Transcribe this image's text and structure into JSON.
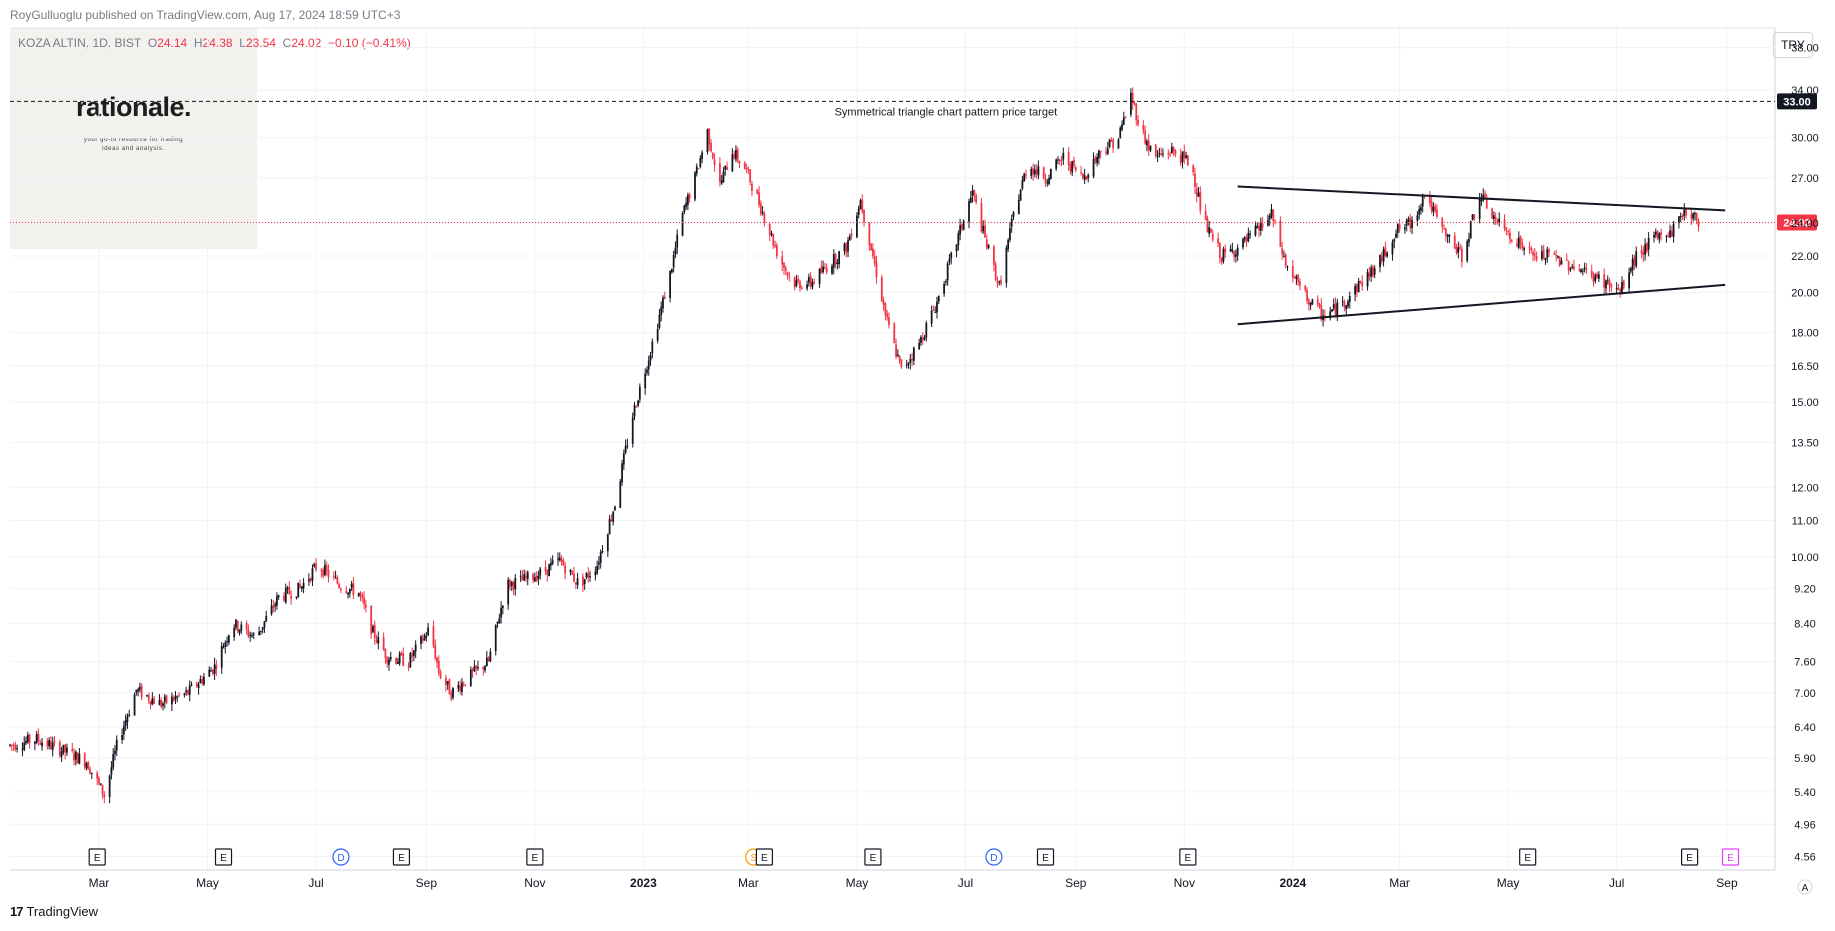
{
  "header": {
    "published": "RoyGulluoglu published on TradingView.com, Aug 17, 2024 18:59 UTC+3"
  },
  "legend": {
    "symbol": "KOZA ALTIN, 1D, BIST",
    "open_label": "O",
    "open": "24.14",
    "high_label": "H",
    "high": "24.38",
    "low_label": "L",
    "low": "23.54",
    "close_label": "C",
    "close": "24.02",
    "change": "−0.10 (−0.41%)"
  },
  "watermark": {
    "brand": "rationale.",
    "tagline_1": "your go-to resource for trading",
    "tagline_2": "ideas and analysis."
  },
  "currency_button": "TRY",
  "footer": {
    "brand": "TradingView",
    "mark": "17"
  },
  "colors": {
    "up": "#131722",
    "down": "#f23645",
    "grid": "#f0f3fa",
    "price_line": "#f23645",
    "target_line": "#131722",
    "events": "#131722",
    "dividend": "#2962ff",
    "split": "#ff9800",
    "upcoming_earnings": "#e040fb"
  },
  "chart_data": {
    "type": "candlestick",
    "title": "KOZA ALTIN, 1D, BIST",
    "scale": "log",
    "ylim": [
      4.4,
      40
    ],
    "y_ticks": [
      "38.00",
      "34.00",
      "30.00",
      "27.00",
      "24.00",
      "22.00",
      "20.00",
      "18.00",
      "16.50",
      "15.00",
      "13.50",
      "12.00",
      "11.00",
      "10.00",
      "9.20",
      "8.40",
      "7.60",
      "7.00",
      "6.40",
      "5.90",
      "5.40",
      "4.96",
      "4.56"
    ],
    "x_ticks": [
      "Mar",
      "May",
      "Jul",
      "Sep",
      "Nov",
      "2023",
      "Mar",
      "May",
      "Jul",
      "Sep",
      "Nov",
      "2024",
      "Mar",
      "May",
      "Jul",
      "Sep"
    ],
    "x_tick_bold": [
      false,
      false,
      false,
      false,
      false,
      true,
      false,
      false,
      false,
      false,
      false,
      true,
      false,
      false,
      false,
      false
    ],
    "grid": true,
    "last_price": 24.02,
    "last_price_label": "24.02",
    "target_price": 33.0,
    "target_label": "33.00",
    "annotation": "Symmetrical triangle chart pattern price target",
    "trendlines": [
      {
        "name": "upper",
        "from": [
          "2023-12-01",
          26.4
        ],
        "to": [
          "2024-08-31",
          24.8
        ]
      },
      {
        "name": "lower",
        "from": [
          "2023-12-01",
          18.4
        ],
        "to": [
          "2024-08-31",
          20.4
        ]
      }
    ],
    "path_points": [
      [
        "2022-01-10",
        6.1
      ],
      [
        "2022-01-25",
        6.2
      ],
      [
        "2022-02-10",
        6.0
      ],
      [
        "2022-02-22",
        5.85
      ],
      [
        "2022-03-04",
        5.35
      ],
      [
        "2022-03-12",
        6.2
      ],
      [
        "2022-03-22",
        7.05
      ],
      [
        "2022-04-05",
        6.8
      ],
      [
        "2022-04-20",
        7.0
      ],
      [
        "2022-05-05",
        7.5
      ],
      [
        "2022-05-15",
        8.4
      ],
      [
        "2022-05-28",
        8.1
      ],
      [
        "2022-06-10",
        9.0
      ],
      [
        "2022-06-22",
        9.2
      ],
      [
        "2022-07-02",
        9.8
      ],
      [
        "2022-07-14",
        9.3
      ],
      [
        "2022-07-25",
        9.1
      ],
      [
        "2022-08-02",
        8.2
      ],
      [
        "2022-08-10",
        7.7
      ],
      [
        "2022-08-22",
        7.6
      ],
      [
        "2022-09-03",
        8.3
      ],
      [
        "2022-09-08",
        7.4
      ],
      [
        "2022-09-15",
        7.0
      ],
      [
        "2022-09-25",
        7.3
      ],
      [
        "2022-10-06",
        7.6
      ],
      [
        "2022-10-16",
        9.3
      ],
      [
        "2022-10-25",
        9.4
      ],
      [
        "2022-11-05",
        9.6
      ],
      [
        "2022-11-15",
        9.9
      ],
      [
        "2022-11-26",
        9.3
      ],
      [
        "2022-12-06",
        9.8
      ],
      [
        "2022-12-16",
        11.5
      ],
      [
        "2022-12-26",
        14.5
      ],
      [
        "2023-01-06",
        17.5
      ],
      [
        "2023-01-16",
        21.0
      ],
      [
        "2023-01-23",
        24.5
      ],
      [
        "2023-01-30",
        27.0
      ],
      [
        "2023-02-06",
        30.5
      ],
      [
        "2023-02-13",
        26.5
      ],
      [
        "2023-02-20",
        29.0
      ],
      [
        "2023-02-28",
        27.5
      ],
      [
        "2023-03-08",
        25.0
      ],
      [
        "2023-03-18",
        22.0
      ],
      [
        "2023-03-26",
        20.5
      ],
      [
        "2023-04-05",
        20.5
      ],
      [
        "2023-04-15",
        21.5
      ],
      [
        "2023-04-25",
        22.5
      ],
      [
        "2023-05-03",
        25.5
      ],
      [
        "2023-05-10",
        22.0
      ],
      [
        "2023-05-18",
        18.5
      ],
      [
        "2023-05-26",
        16.3
      ],
      [
        "2023-06-05",
        17.5
      ],
      [
        "2023-06-15",
        19.5
      ],
      [
        "2023-06-25",
        22.5
      ],
      [
        "2023-07-05",
        26.0
      ],
      [
        "2023-07-12",
        23.0
      ],
      [
        "2023-07-20",
        20.3
      ],
      [
        "2023-07-28",
        24.5
      ],
      [
        "2023-08-05",
        28.0
      ],
      [
        "2023-08-15",
        27.0
      ],
      [
        "2023-08-25",
        28.5
      ],
      [
        "2023-09-05",
        27.0
      ],
      [
        "2023-09-15",
        29.0
      ],
      [
        "2023-09-25",
        30.0
      ],
      [
        "2023-10-02",
        33.5
      ],
      [
        "2023-10-08",
        30.5
      ],
      [
        "2023-10-15",
        28.5
      ],
      [
        "2023-10-25",
        29.0
      ],
      [
        "2023-11-05",
        28.0
      ],
      [
        "2023-11-12",
        24.0
      ],
      [
        "2023-11-22",
        22.0
      ],
      [
        "2023-12-02",
        22.5
      ],
      [
        "2023-12-12",
        23.5
      ],
      [
        "2023-12-20",
        24.5
      ],
      [
        "2023-12-28",
        21.5
      ],
      [
        "2024-01-08",
        19.8
      ],
      [
        "2024-01-18",
        18.8
      ],
      [
        "2024-01-28",
        19.3
      ],
      [
        "2024-02-08",
        20.5
      ],
      [
        "2024-02-18",
        21.5
      ],
      [
        "2024-02-28",
        23.5
      ],
      [
        "2024-03-08",
        24.0
      ],
      [
        "2024-03-15",
        26.0
      ],
      [
        "2024-03-25",
        23.5
      ],
      [
        "2024-04-05",
        22.0
      ],
      [
        "2024-04-15",
        25.8
      ],
      [
        "2024-04-25",
        24.0
      ],
      [
        "2024-05-05",
        23.0
      ],
      [
        "2024-05-15",
        22.0
      ],
      [
        "2024-05-25",
        22.0
      ],
      [
        "2024-06-05",
        21.5
      ],
      [
        "2024-06-15",
        21.0
      ],
      [
        "2024-06-25",
        20.5
      ],
      [
        "2024-07-03",
        20.0
      ],
      [
        "2024-07-12",
        22.0
      ],
      [
        "2024-07-22",
        23.0
      ],
      [
        "2024-08-01",
        23.5
      ],
      [
        "2024-08-08",
        24.8
      ],
      [
        "2024-08-17",
        24.02
      ]
    ],
    "events": [
      {
        "date": "2022-02-28",
        "label": "E",
        "kind": "earnings"
      },
      {
        "date": "2022-05-10",
        "label": "E",
        "kind": "earnings"
      },
      {
        "date": "2022-07-15",
        "label": "D",
        "kind": "dividend"
      },
      {
        "date": "2022-08-18",
        "label": "E",
        "kind": "earnings"
      },
      {
        "date": "2022-11-01",
        "label": "E",
        "kind": "earnings"
      },
      {
        "date": "2023-03-04",
        "label": "S",
        "kind": "split"
      },
      {
        "date": "2023-03-10",
        "label": "E",
        "kind": "earnings"
      },
      {
        "date": "2023-05-10",
        "label": "E",
        "kind": "earnings"
      },
      {
        "date": "2023-07-17",
        "label": "D",
        "kind": "dividend"
      },
      {
        "date": "2023-08-15",
        "label": "E",
        "kind": "earnings"
      },
      {
        "date": "2023-11-03",
        "label": "E",
        "kind": "earnings"
      },
      {
        "date": "2024-05-12",
        "label": "E",
        "kind": "earnings"
      },
      {
        "date": "2024-08-11",
        "label": "E",
        "kind": "earnings"
      },
      {
        "date": "2024-09-03",
        "label": "E",
        "kind": "upcoming_earnings"
      }
    ]
  }
}
